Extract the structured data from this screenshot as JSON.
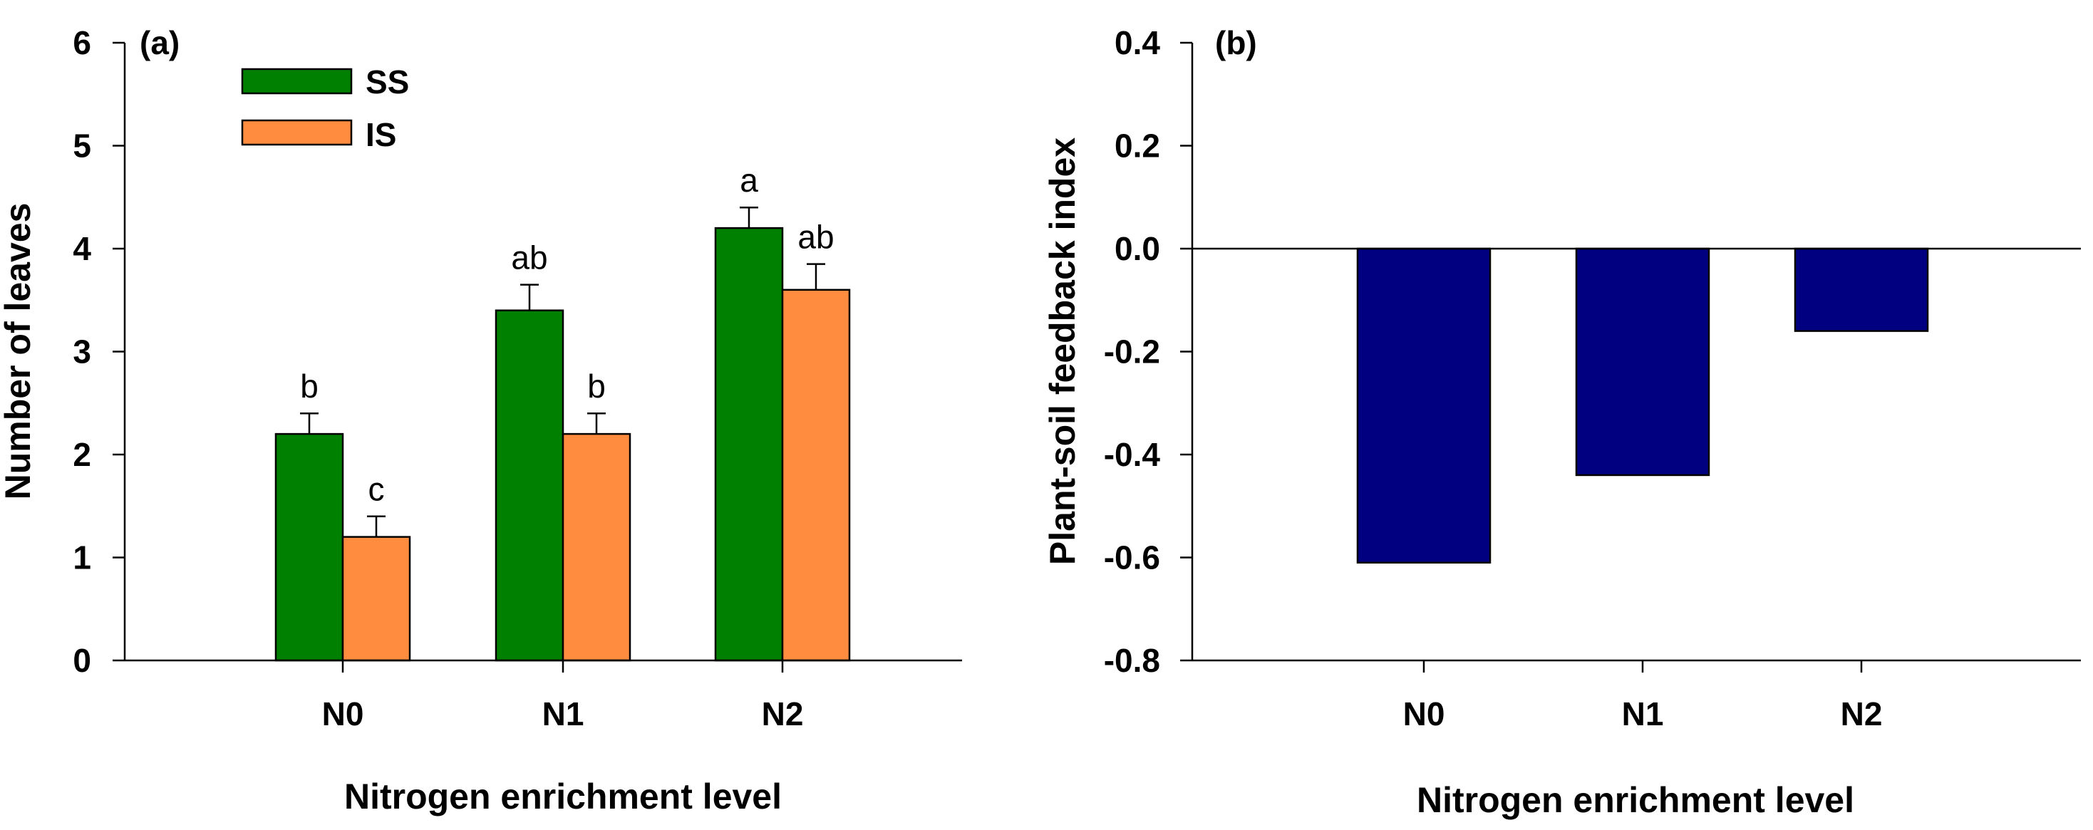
{
  "colors": {
    "ss": "#008000",
    "is": "#FF8C3F",
    "psf": "#000080"
  },
  "chart_data": [
    {
      "type": "bar",
      "panel_label": "(a)",
      "title": "",
      "xlabel": "Nitrogen enrichment level",
      "ylabel": "Number of leaves",
      "categories": [
        "N0",
        "N1",
        "N2"
      ],
      "ylim": [
        0,
        6
      ],
      "yticks": [
        "0",
        "1",
        "2",
        "3",
        "4",
        "5",
        "6"
      ],
      "series": [
        {
          "name": "SS",
          "values": [
            2.2,
            3.4,
            4.2
          ],
          "errors": [
            0.2,
            0.25,
            0.2
          ],
          "letters": [
            "b",
            "ab",
            "a"
          ]
        },
        {
          "name": "IS",
          "values": [
            1.2,
            2.2,
            3.6
          ],
          "errors": [
            0.2,
            0.2,
            0.25
          ],
          "letters": [
            "c",
            "b",
            "ab"
          ]
        }
      ],
      "legend_position": "top-left"
    },
    {
      "type": "bar",
      "panel_label": "(b)",
      "title": "",
      "xlabel": "Nitrogen enrichment level",
      "ylabel": "Plant-soil feedback index",
      "categories": [
        "N0",
        "N1",
        "N2"
      ],
      "ylim": [
        -0.8,
        0.4
      ],
      "yticks": [
        "-0.8",
        "-0.6",
        "-0.4",
        "-0.2",
        "0.0",
        "0.2",
        "0.4"
      ],
      "series": [
        {
          "name": "Plant-soil feedback index",
          "values": [
            -0.61,
            -0.44,
            -0.16
          ]
        }
      ]
    }
  ]
}
